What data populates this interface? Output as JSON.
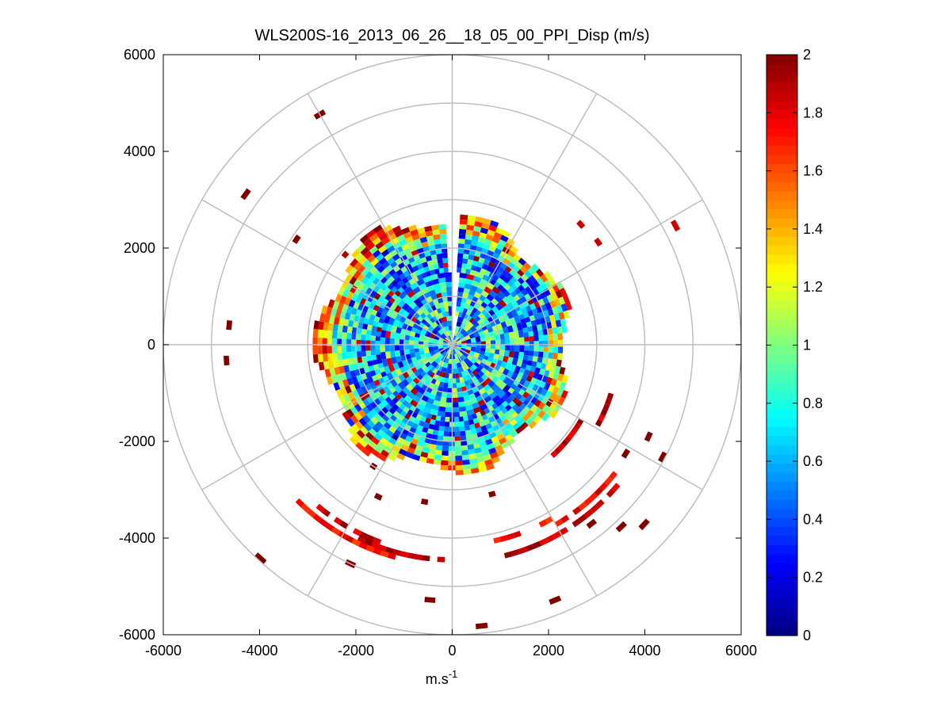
{
  "chart_data": {
    "type": "heatmap",
    "subtype": "polar-ppi",
    "title": "WLS200S-16_2013_06_26__18_05_00_PPI_Disp (m/s)",
    "xlabel": "m.s",
    "xlabel_superscript": "-1",
    "xlim": [
      -6000,
      6000
    ],
    "ylim": [
      -6000,
      6000
    ],
    "xticks": [
      -6000,
      -4000,
      -2000,
      0,
      2000,
      4000,
      6000
    ],
    "yticks": [
      -6000,
      -4000,
      -2000,
      0,
      2000,
      4000,
      6000
    ],
    "xtick_labels": [
      "-6000",
      "-4000",
      "-2000",
      "0",
      "2000",
      "4000",
      "6000"
    ],
    "ytick_labels": [
      "-6000",
      "-4000",
      "-2000",
      "0",
      "2000",
      "4000",
      "6000"
    ],
    "polar_grid": {
      "ring_radii": [
        1000,
        2000,
        3000,
        4000,
        5000,
        6000
      ],
      "spoke_step_deg": 30
    },
    "colorbar": {
      "colormap": "jet",
      "range": [
        0,
        2
      ],
      "ticks": [
        0,
        0.2,
        0.4,
        0.6,
        0.8,
        1,
        1.2,
        1.4,
        1.6,
        1.8,
        2
      ],
      "tick_labels": [
        "0",
        "0.2",
        "0.4",
        "0.6",
        "0.8",
        "1",
        "1.2",
        "1.4",
        "1.6",
        "1.8",
        "2"
      ]
    },
    "dense_region": {
      "range_min": 0,
      "range_max": 3000,
      "gap_azimuth_deg": [
        357.5,
        0
      ],
      "value_profile": [
        {
          "range": 0,
          "mean": 0.75
        },
        {
          "range": 1000,
          "mean": 0.72
        },
        {
          "range": 2000,
          "mean": 0.6
        },
        {
          "range": 2500,
          "mean": 0.9
        },
        {
          "range": 2900,
          "mean": 1.3
        }
      ]
    },
    "sparse_cells": [
      {
        "az": 330,
        "r": 5500,
        "v": 2.0
      },
      {
        "az": 306,
        "r": 5300,
        "v": 2.0
      },
      {
        "az": 304,
        "r": 3900,
        "v": 2.0
      },
      {
        "az": 310,
        "r": 2900,
        "v": 1.9
      },
      {
        "az": 275,
        "r": 4650,
        "v": 2.0
      },
      {
        "az": 266,
        "r": 4700,
        "v": 2.0
      },
      {
        "az": 47,
        "r": 3650,
        "v": 1.85
      },
      {
        "az": 55,
        "r": 3700,
        "v": 1.85
      },
      {
        "az": 62,
        "r": 5250,
        "v": 1.85
      },
      {
        "az": 115,
        "r": 4500,
        "v": 2.0
      },
      {
        "az": 118,
        "r": 4950,
        "v": 2.0
      },
      {
        "az": 122,
        "r": 4250,
        "v": 2.0
      },
      {
        "az": 133,
        "r": 5450,
        "v": 2.0
      },
      {
        "az": 137,
        "r": 5150,
        "v": 2.0
      },
      {
        "az": 142,
        "r": 4700,
        "v": 2.0
      },
      {
        "az": 150,
        "r": 4500,
        "v": 2.0
      },
      {
        "az": 158,
        "r": 5700,
        "v": 2.0
      },
      {
        "az": 174,
        "r": 5850,
        "v": 2.0
      },
      {
        "az": 185,
        "r": 5300,
        "v": 2.0
      },
      {
        "az": 205,
        "r": 5000,
        "v": 2.0
      },
      {
        "az": 206,
        "r": 3500,
        "v": 2.0
      },
      {
        "az": 213,
        "r": 3000,
        "v": 2.0
      },
      {
        "az": 222,
        "r": 5950,
        "v": 2.0
      },
      {
        "az": 165,
        "r": 3200,
        "v": 2.0
      },
      {
        "az": 190,
        "r": 3300,
        "v": 2.0
      }
    ],
    "arcs": [
      {
        "r": 4500,
        "az_start": 130,
        "az_end": 165,
        "v": 2.0
      },
      {
        "r": 4300,
        "az_start": 128,
        "az_end": 150,
        "v": 1.9
      },
      {
        "r": 4150,
        "az_start": 150,
        "az_end": 168,
        "v": 1.85
      },
      {
        "r": 4450,
        "az_start": 182,
        "az_end": 205,
        "v": 2.0
      },
      {
        "r": 4550,
        "az_start": 195,
        "az_end": 225,
        "v": 1.85
      },
      {
        "r": 4350,
        "az_start": 200,
        "az_end": 222,
        "v": 2.0
      },
      {
        "r": 3450,
        "az_start": 105,
        "az_end": 120,
        "v": 2.0
      },
      {
        "r": 3100,
        "az_start": 118,
        "az_end": 140,
        "v": 2.0
      }
    ]
  }
}
